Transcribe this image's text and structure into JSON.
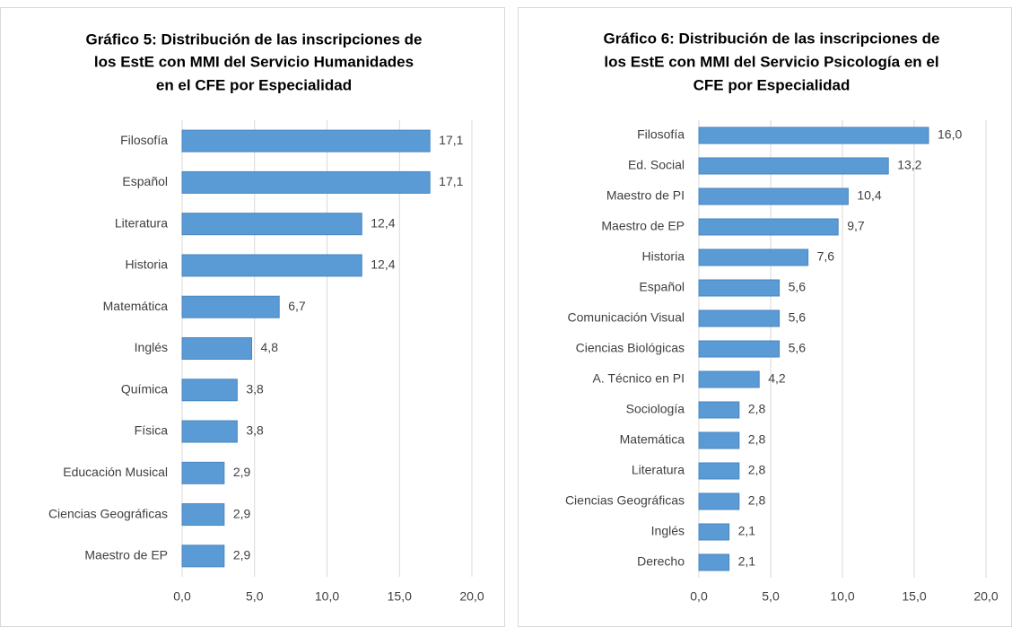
{
  "chart_data": [
    {
      "type": "barh",
      "title": [
        "Gráfico 5: Distribución de las inscripciones de",
        "los EstE con MMI del Servicio Humanidades",
        "en el CFE por Especialidad"
      ],
      "categories": [
        "Filosofía",
        "Español",
        "Literatura",
        "Historia",
        "Matemática",
        "Inglés",
        "Química",
        "Física",
        "Educación Musical",
        "Ciencias Geográficas",
        "Maestro de EP"
      ],
      "values": [
        17.1,
        17.1,
        12.4,
        12.4,
        6.7,
        4.8,
        3.8,
        3.8,
        2.9,
        2.9,
        2.9
      ],
      "value_labels": [
        "17,1",
        "17,1",
        "12,4",
        "12,4",
        "6,7",
        "4,8",
        "3,8",
        "3,8",
        "2,9",
        "2,9",
        "2,9"
      ],
      "color": "#5b9bd5",
      "xlim": [
        0,
        20
      ],
      "xticks": [
        {
          "value": 0,
          "label": "0,0"
        },
        {
          "value": 5,
          "label": "5,0"
        },
        {
          "value": 10,
          "label": "10,0"
        },
        {
          "value": 15,
          "label": "15,0"
        },
        {
          "value": 20,
          "label": "20,0"
        }
      ],
      "grid": true
    },
    {
      "type": "barh",
      "title": [
        "Gráfico 6: Distribución de las inscripciones de",
        "los EstE con MMI del Servicio Psicología en el",
        "CFE por Especialidad"
      ],
      "categories": [
        "Filosofía",
        "Ed. Social",
        "Maestro de PI",
        "Maestro de EP",
        "Historia",
        "Español",
        "Comunicación Visual",
        "Ciencias Biológicas",
        "A. Técnico en PI",
        "Sociología",
        "Matemática",
        "Literatura",
        "Ciencias Geográficas",
        "Inglés",
        "Derecho"
      ],
      "values": [
        16.0,
        13.2,
        10.4,
        9.7,
        7.6,
        5.6,
        5.6,
        5.6,
        4.2,
        2.8,
        2.8,
        2.8,
        2.8,
        2.1,
        2.1
      ],
      "value_labels": [
        "16,0",
        "13,2",
        "10,4",
        "9,7",
        "7,6",
        "5,6",
        "5,6",
        "5,6",
        "4,2",
        "2,8",
        "2,8",
        "2,8",
        "2,8",
        "2,1",
        "2,1"
      ],
      "color": "#5b9bd5",
      "xlim": [
        0,
        20
      ],
      "xticks": [
        {
          "value": 0,
          "label": "0,0"
        },
        {
          "value": 5,
          "label": "5,0"
        },
        {
          "value": 10,
          "label": "10,0"
        },
        {
          "value": 15,
          "label": "15,0"
        },
        {
          "value": 20,
          "label": "20,0"
        }
      ],
      "grid": true
    }
  ]
}
